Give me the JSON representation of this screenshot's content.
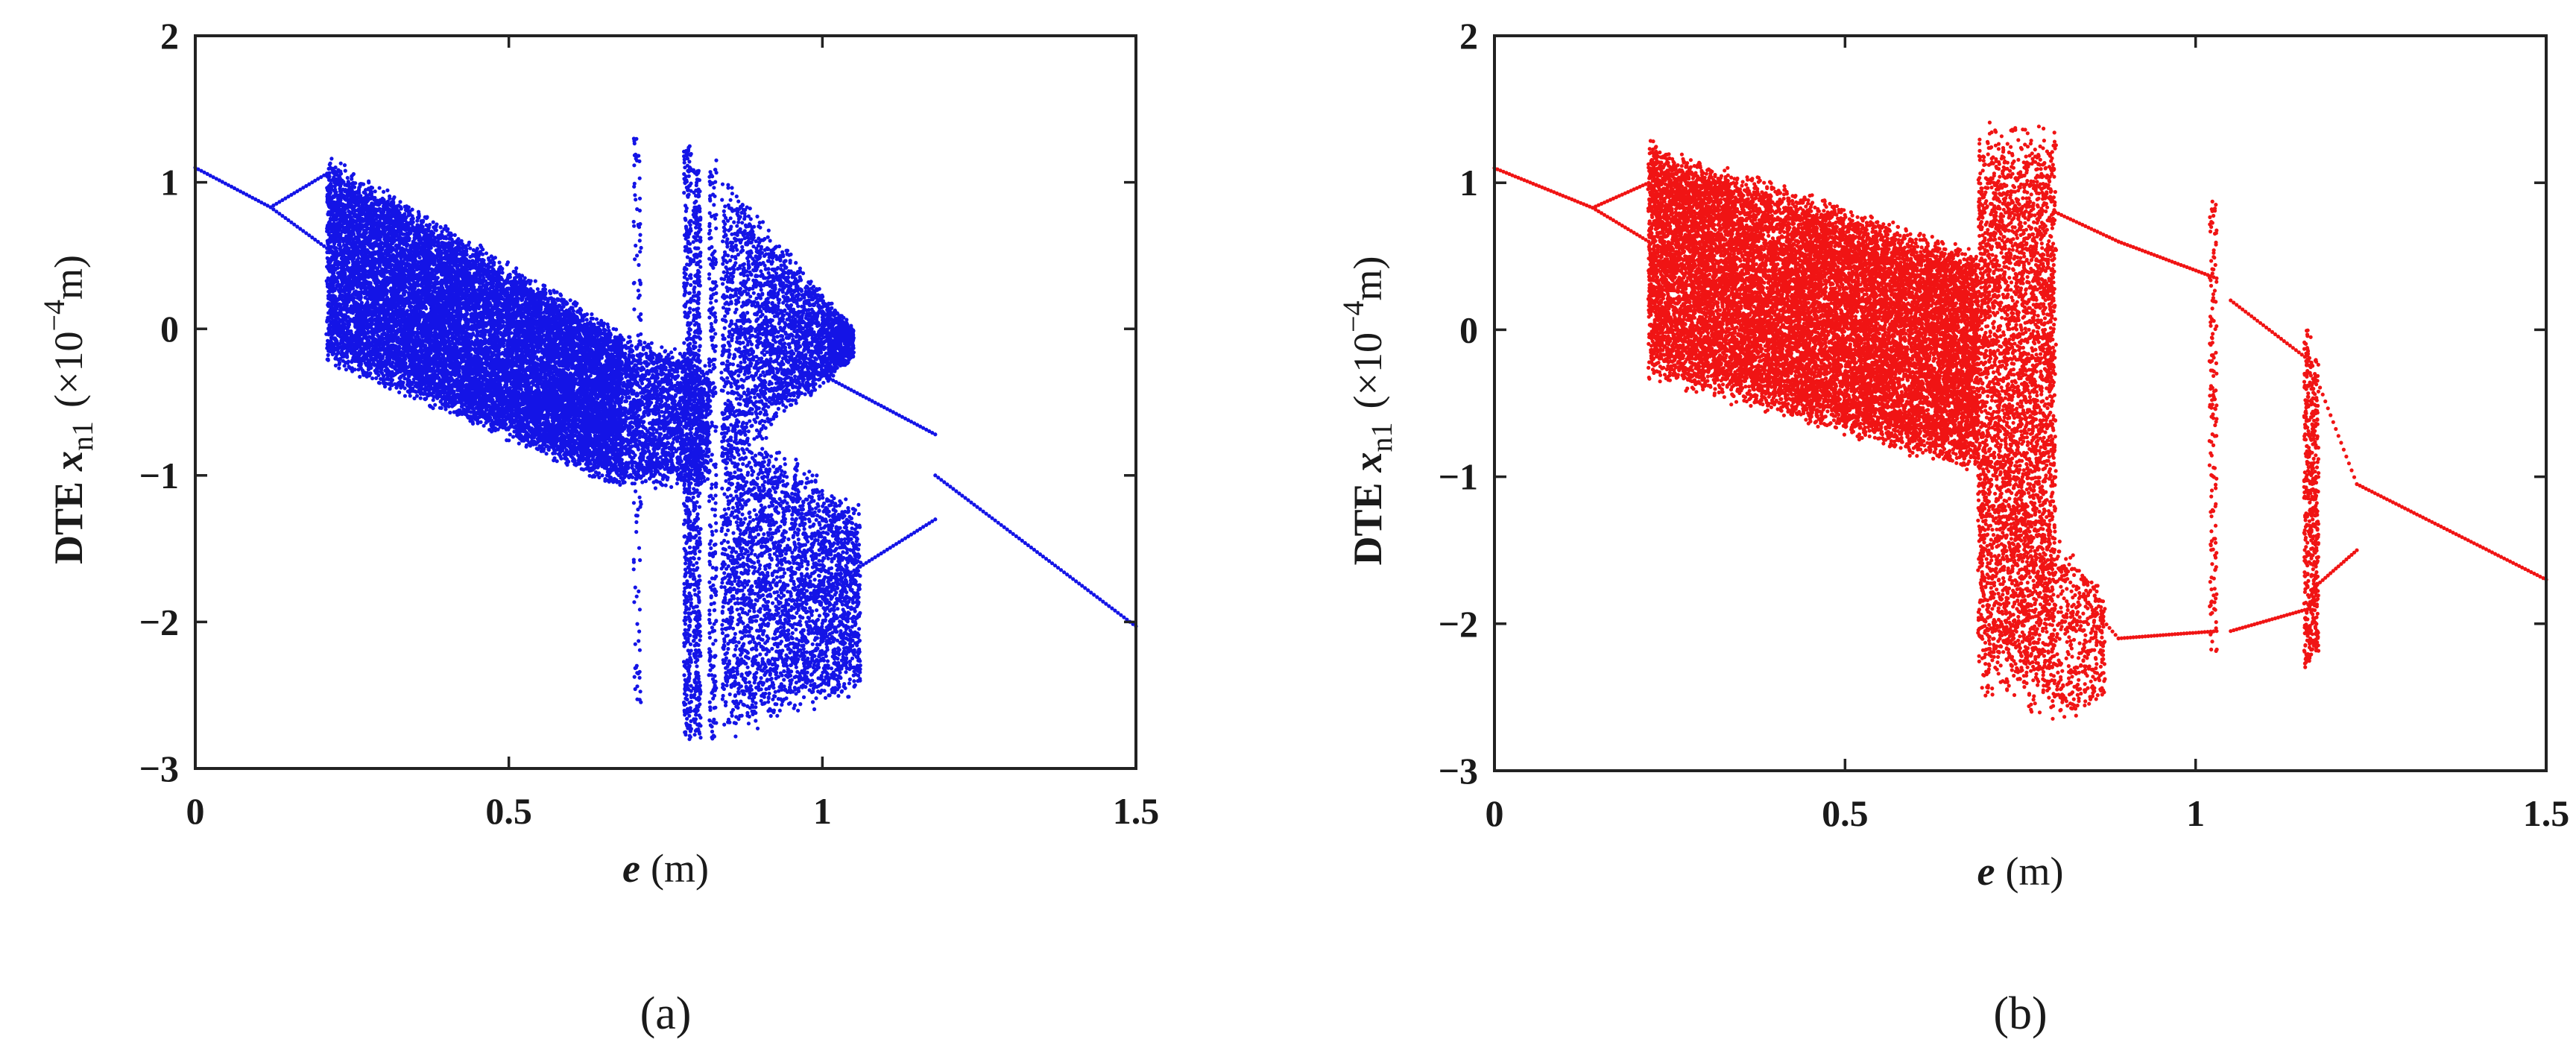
{
  "chart_data": [
    {
      "type": "scatter",
      "panel_label": "(a)",
      "color": "#1414e6",
      "xlabel": {
        "var": "e",
        "unit": "(m)"
      },
      "ylabel": {
        "prefix": "DTE",
        "var": "x",
        "sub": "n1",
        "unit_open": "(×10",
        "exp": "−4",
        "unit_close": "m)"
      },
      "xlim": [
        0,
        1.5
      ],
      "ylim": [
        -3,
        2
      ],
      "xticks": [
        0,
        0.5,
        1,
        1.5
      ],
      "xtick_labels": [
        "0",
        "0.5",
        "1",
        "1.5"
      ],
      "yticks": [
        -3,
        -2,
        -1,
        0,
        1,
        2
      ],
      "ytick_labels": [
        "−3",
        "−2",
        "−1",
        "0",
        "1",
        "2"
      ],
      "period1": [
        {
          "e": [
            0.0,
            0.12
          ],
          "y": [
            1.1,
            0.83
          ]
        },
        {
          "e": [
            1.18,
            1.5
          ],
          "y": [
            -1.0,
            -2.03
          ]
        }
      ],
      "period2": [
        {
          "e": [
            0.12,
            0.21
          ],
          "upper": [
            0.83,
            1.06
          ],
          "lower": [
            0.83,
            0.55
          ]
        },
        {
          "e": [
            0.95,
            1.18
          ],
          "upper": [
            -0.2,
            -0.72
          ],
          "lower": [
            -1.92,
            -1.3
          ]
        }
      ],
      "chaotic_regions": [
        {
          "e": [
            0.21,
            0.68
          ],
          "ymin": [
            -0.25,
            -1.1
          ],
          "ymax": [
            1.2,
            0.0
          ],
          "density": 14000
        },
        {
          "e": [
            0.68,
            0.82
          ],
          "ymin": [
            -1.1,
            -1.1
          ],
          "ymax": [
            0.0,
            -0.2
          ],
          "density": 1800
        },
        {
          "e": [
            0.84,
            1.05
          ],
          "ymin": [
            -1.0,
            -0.2
          ],
          "ymax": [
            1.1,
            0.0
          ],
          "density": 2600
        },
        {
          "e": [
            0.84,
            1.06
          ],
          "ymin": [
            -2.82,
            -2.5
          ],
          "ymax": [
            -0.5,
            -1.2
          ],
          "density": 3000
        }
      ],
      "vertical_bands": [
        {
          "e": 0.705,
          "ymin": -2.55,
          "ymax": 1.3,
          "density": 120
        },
        {
          "e": 0.785,
          "ymin": -2.8,
          "ymax": 1.25,
          "density": 500
        },
        {
          "e": 0.8,
          "ymin": -2.8,
          "ymax": 1.1,
          "density": 500
        },
        {
          "e": 0.825,
          "ymin": -2.8,
          "ymax": 1.15,
          "density": 250
        }
      ]
    },
    {
      "type": "scatter",
      "panel_label": "(b)",
      "color": "#f01414",
      "xlabel": {
        "var": "e",
        "unit": "(m)"
      },
      "ylabel": {
        "prefix": "DTE",
        "var": "x",
        "sub": "n1",
        "unit_open": "(×10",
        "exp": "−4",
        "unit_close": "m)"
      },
      "xlim": [
        0,
        1.5
      ],
      "ylim": [
        -3,
        2
      ],
      "xticks": [
        0,
        0.5,
        1,
        1.5
      ],
      "xtick_labels": [
        "0",
        "0.5",
        "1",
        "1.5"
      ],
      "yticks": [
        -3,
        -2,
        -1,
        0,
        1,
        2
      ],
      "ytick_labels": [
        "−3",
        "−2",
        "−1",
        "0",
        "1",
        "2"
      ],
      "period1": [
        {
          "e": [
            0.0,
            0.14
          ],
          "y": [
            1.1,
            0.83
          ]
        },
        {
          "e": [
            1.23,
            1.5
          ],
          "y": [
            -1.05,
            -1.7
          ]
        }
      ],
      "period2": [
        {
          "e": [
            0.14,
            0.22
          ],
          "upper": [
            0.83,
            1.0
          ],
          "lower": [
            0.83,
            0.6
          ]
        },
        {
          "e": [
            0.8,
            0.89
          ],
          "upper": [
            0.8,
            0.6
          ],
          "lower": [
            -1.6,
            -2.1
          ]
        },
        {
          "e": [
            0.89,
            1.03
          ],
          "upper": [
            0.6,
            0.35
          ],
          "lower": [
            -2.1,
            -2.05
          ]
        },
        {
          "e": [
            1.05,
            1.16
          ],
          "upper": [
            0.2,
            -0.2
          ],
          "lower": [
            -2.05,
            -1.9
          ]
        },
        {
          "e": [
            1.17,
            1.23
          ],
          "upper": [
            -0.3,
            -1.05
          ],
          "lower": [
            -1.75,
            -1.5
          ]
        }
      ],
      "chaotic_regions": [
        {
          "e": [
            0.22,
            0.69
          ],
          "ymin": [
            -0.35,
            -1.0
          ],
          "ymax": [
            1.3,
            0.55
          ],
          "density": 15000
        },
        {
          "e": [
            0.69,
            0.8
          ],
          "ymin": [
            -2.5,
            -2.7
          ],
          "ymax": [
            1.45,
            1.4
          ],
          "density": 4000
        },
        {
          "e": [
            0.8,
            0.87
          ],
          "ymin": [
            -2.75,
            -2.5
          ],
          "ymax": [
            -1.3,
            -1.8
          ],
          "density": 400
        }
      ],
      "vertical_bands": [
        {
          "e": 1.025,
          "ymin": -2.2,
          "ymax": 0.9,
          "density": 160
        },
        {
          "e": 1.16,
          "ymin": -2.3,
          "ymax": 0.0,
          "density": 260
        },
        {
          "e": 1.17,
          "ymin": -2.2,
          "ymax": -0.2,
          "density": 260
        }
      ]
    }
  ]
}
